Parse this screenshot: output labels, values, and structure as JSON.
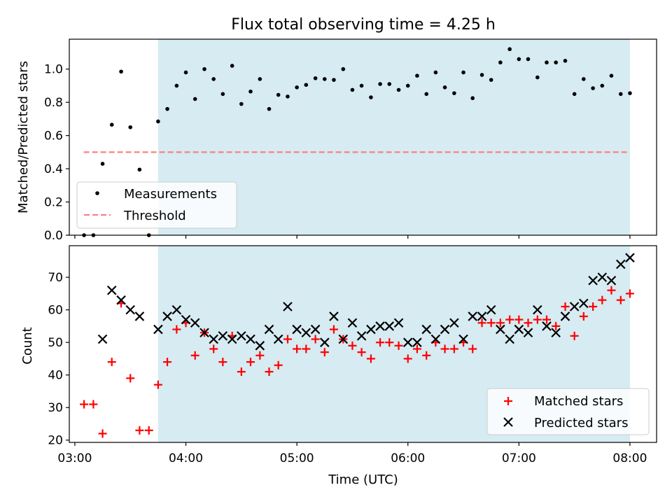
{
  "chart_data": [
    {
      "type": "scatter",
      "title": "Flux total observing time = 4.25 h",
      "xlabel": "",
      "ylabel": "Matched/Predicted stars",
      "xlim": [
        2.95,
        8.24
      ],
      "ylim": [
        0,
        1.18
      ],
      "x_ticks": [
        3,
        4,
        5,
        6,
        7,
        8
      ],
      "y_ticks": [
        0.0,
        0.2,
        0.4,
        0.6,
        0.8,
        1.0
      ],
      "y_tick_labels": [
        "0.0",
        "0.2",
        "0.4",
        "0.6",
        "0.8",
        "1.0"
      ],
      "shaded_region": {
        "x_start": 3.75,
        "x_end": 8.0,
        "color": "#add8e6"
      },
      "threshold": {
        "name": "Threshold",
        "y": 0.5,
        "x_start": 3.08,
        "x_end": 7.98,
        "color": "#ff7f7f"
      },
      "series": [
        {
          "name": "Measurements",
          "color": "#000000",
          "marker": "dot",
          "points": [
            [
              3.083,
              0.0
            ],
            [
              3.167,
              0.0
            ],
            [
              3.25,
              0.43
            ],
            [
              3.333,
              0.665
            ],
            [
              3.417,
              0.985
            ],
            [
              3.5,
              0.65
            ],
            [
              3.583,
              0.395
            ],
            [
              3.667,
              0.0
            ],
            [
              3.75,
              0.685
            ],
            [
              3.833,
              0.76
            ],
            [
              3.917,
              0.9
            ],
            [
              4.0,
              0.98
            ],
            [
              4.083,
              0.82
            ],
            [
              4.167,
              1.0
            ],
            [
              4.25,
              0.94
            ],
            [
              4.333,
              0.85
            ],
            [
              4.417,
              1.02
            ],
            [
              4.5,
              0.79
            ],
            [
              4.583,
              0.865
            ],
            [
              4.667,
              0.94
            ],
            [
              4.75,
              0.76
            ],
            [
              4.833,
              0.845
            ],
            [
              4.917,
              0.835
            ],
            [
              5.0,
              0.89
            ],
            [
              5.083,
              0.905
            ],
            [
              5.167,
              0.945
            ],
            [
              5.25,
              0.94
            ],
            [
              5.333,
              0.935
            ],
            [
              5.417,
              1.0
            ],
            [
              5.5,
              0.875
            ],
            [
              5.583,
              0.9
            ],
            [
              5.667,
              0.83
            ],
            [
              5.75,
              0.91
            ],
            [
              5.833,
              0.91
            ],
            [
              5.917,
              0.875
            ],
            [
              6.0,
              0.9
            ],
            [
              6.083,
              0.96
            ],
            [
              6.167,
              0.85
            ],
            [
              6.25,
              0.98
            ],
            [
              6.333,
              0.89
            ],
            [
              6.417,
              0.855
            ],
            [
              6.5,
              0.98
            ],
            [
              6.583,
              0.825
            ],
            [
              6.667,
              0.965
            ],
            [
              6.75,
              0.935
            ],
            [
              6.833,
              1.04
            ],
            [
              6.917,
              1.12
            ],
            [
              7.0,
              1.06
            ],
            [
              7.083,
              1.06
            ],
            [
              7.167,
              0.95
            ],
            [
              7.25,
              1.04
            ],
            [
              7.333,
              1.04
            ],
            [
              7.417,
              1.05
            ],
            [
              7.5,
              0.85
            ],
            [
              7.583,
              0.94
            ],
            [
              7.667,
              0.885
            ],
            [
              7.75,
              0.9
            ],
            [
              7.833,
              0.96
            ],
            [
              7.917,
              0.85
            ],
            [
              8.0,
              0.855
            ]
          ]
        }
      ],
      "legend": {
        "position": "lower-left",
        "entries": [
          "Measurements",
          "Threshold"
        ]
      }
    },
    {
      "type": "scatter",
      "title": "",
      "xlabel": "Time (UTC)",
      "ylabel": "Count",
      "xlim": [
        2.95,
        8.24
      ],
      "ylim": [
        19.3,
        79.7
      ],
      "x_ticks": [
        3,
        4,
        5,
        6,
        7,
        8
      ],
      "x_tick_labels": [
        "03:00",
        "04:00",
        "05:00",
        "06:00",
        "07:00",
        "08:00"
      ],
      "y_ticks": [
        20,
        30,
        40,
        50,
        60,
        70
      ],
      "y_tick_labels": [
        "20",
        "30",
        "40",
        "50",
        "60",
        "70"
      ],
      "shaded_region": {
        "x_start": 3.75,
        "x_end": 8.0,
        "color": "#add8e6"
      },
      "series": [
        {
          "name": "Matched stars",
          "color": "#ff0000",
          "marker": "plus",
          "points": [
            [
              3.083,
              31
            ],
            [
              3.167,
              31
            ],
            [
              3.25,
              22
            ],
            [
              3.333,
              44
            ],
            [
              3.417,
              62
            ],
            [
              3.5,
              39
            ],
            [
              3.583,
              23
            ],
            [
              3.667,
              23
            ],
            [
              3.75,
              37
            ],
            [
              3.833,
              44
            ],
            [
              3.917,
              54
            ],
            [
              4.0,
              56
            ],
            [
              4.083,
              46
            ],
            [
              4.167,
              53
            ],
            [
              4.25,
              48
            ],
            [
              4.333,
              44
            ],
            [
              4.417,
              52
            ],
            [
              4.5,
              41
            ],
            [
              4.583,
              44
            ],
            [
              4.667,
              46
            ],
            [
              4.75,
              41
            ],
            [
              4.833,
              43
            ],
            [
              4.917,
              51
            ],
            [
              5.0,
              48
            ],
            [
              5.083,
              48
            ],
            [
              5.167,
              51
            ],
            [
              5.25,
              47
            ],
            [
              5.333,
              54
            ],
            [
              5.417,
              51
            ],
            [
              5.5,
              49
            ],
            [
              5.583,
              47
            ],
            [
              5.667,
              45
            ],
            [
              5.75,
              50
            ],
            [
              5.833,
              50
            ],
            [
              5.917,
              49
            ],
            [
              6.0,
              45
            ],
            [
              6.083,
              48
            ],
            [
              6.167,
              46
            ],
            [
              6.25,
              50
            ],
            [
              6.333,
              48
            ],
            [
              6.417,
              48
            ],
            [
              6.5,
              50
            ],
            [
              6.583,
              48
            ],
            [
              6.667,
              56
            ],
            [
              6.75,
              56
            ],
            [
              6.833,
              56
            ],
            [
              6.917,
              57
            ],
            [
              7.0,
              57
            ],
            [
              7.083,
              56
            ],
            [
              7.167,
              57
            ],
            [
              7.25,
              57
            ],
            [
              7.333,
              55
            ],
            [
              7.417,
              61
            ],
            [
              7.5,
              52
            ],
            [
              7.583,
              58
            ],
            [
              7.667,
              61
            ],
            [
              7.75,
              63
            ],
            [
              7.833,
              66
            ],
            [
              7.917,
              63
            ],
            [
              8.0,
              65
            ]
          ]
        },
        {
          "name": "Predicted stars",
          "color": "#000000",
          "marker": "x",
          "points": [
            [
              3.25,
              51
            ],
            [
              3.333,
              66
            ],
            [
              3.417,
              63
            ],
            [
              3.5,
              60
            ],
            [
              3.583,
              58
            ],
            [
              3.75,
              54
            ],
            [
              3.833,
              58
            ],
            [
              3.917,
              60
            ],
            [
              4.0,
              57
            ],
            [
              4.083,
              56
            ],
            [
              4.167,
              53
            ],
            [
              4.25,
              51
            ],
            [
              4.333,
              52
            ],
            [
              4.417,
              51
            ],
            [
              4.5,
              52
            ],
            [
              4.583,
              51
            ],
            [
              4.667,
              49
            ],
            [
              4.75,
              54
            ],
            [
              4.833,
              51
            ],
            [
              4.917,
              61
            ],
            [
              5.0,
              54
            ],
            [
              5.083,
              53
            ],
            [
              5.167,
              54
            ],
            [
              5.25,
              50
            ],
            [
              5.333,
              58
            ],
            [
              5.417,
              51
            ],
            [
              5.5,
              56
            ],
            [
              5.583,
              52
            ],
            [
              5.667,
              54
            ],
            [
              5.75,
              55
            ],
            [
              5.833,
              55
            ],
            [
              5.917,
              56
            ],
            [
              6.0,
              50
            ],
            [
              6.083,
              50
            ],
            [
              6.167,
              54
            ],
            [
              6.25,
              51
            ],
            [
              6.333,
              54
            ],
            [
              6.417,
              56
            ],
            [
              6.5,
              51
            ],
            [
              6.583,
              58
            ],
            [
              6.667,
              58
            ],
            [
              6.75,
              60
            ],
            [
              6.833,
              54
            ],
            [
              6.917,
              51
            ],
            [
              7.0,
              54
            ],
            [
              7.083,
              53
            ],
            [
              7.167,
              60
            ],
            [
              7.25,
              55
            ],
            [
              7.333,
              53
            ],
            [
              7.417,
              58
            ],
            [
              7.5,
              61
            ],
            [
              7.583,
              62
            ],
            [
              7.667,
              69
            ],
            [
              7.75,
              70
            ],
            [
              7.833,
              69
            ],
            [
              7.917,
              74
            ],
            [
              8.0,
              76
            ]
          ]
        }
      ],
      "legend": {
        "position": "lower-right",
        "entries": [
          "Matched stars",
          "Predicted stars"
        ]
      }
    }
  ],
  "legend_labels": {
    "measurements": "Measurements",
    "threshold": "Threshold",
    "matched": "Matched stars",
    "predicted": "Predicted stars"
  }
}
